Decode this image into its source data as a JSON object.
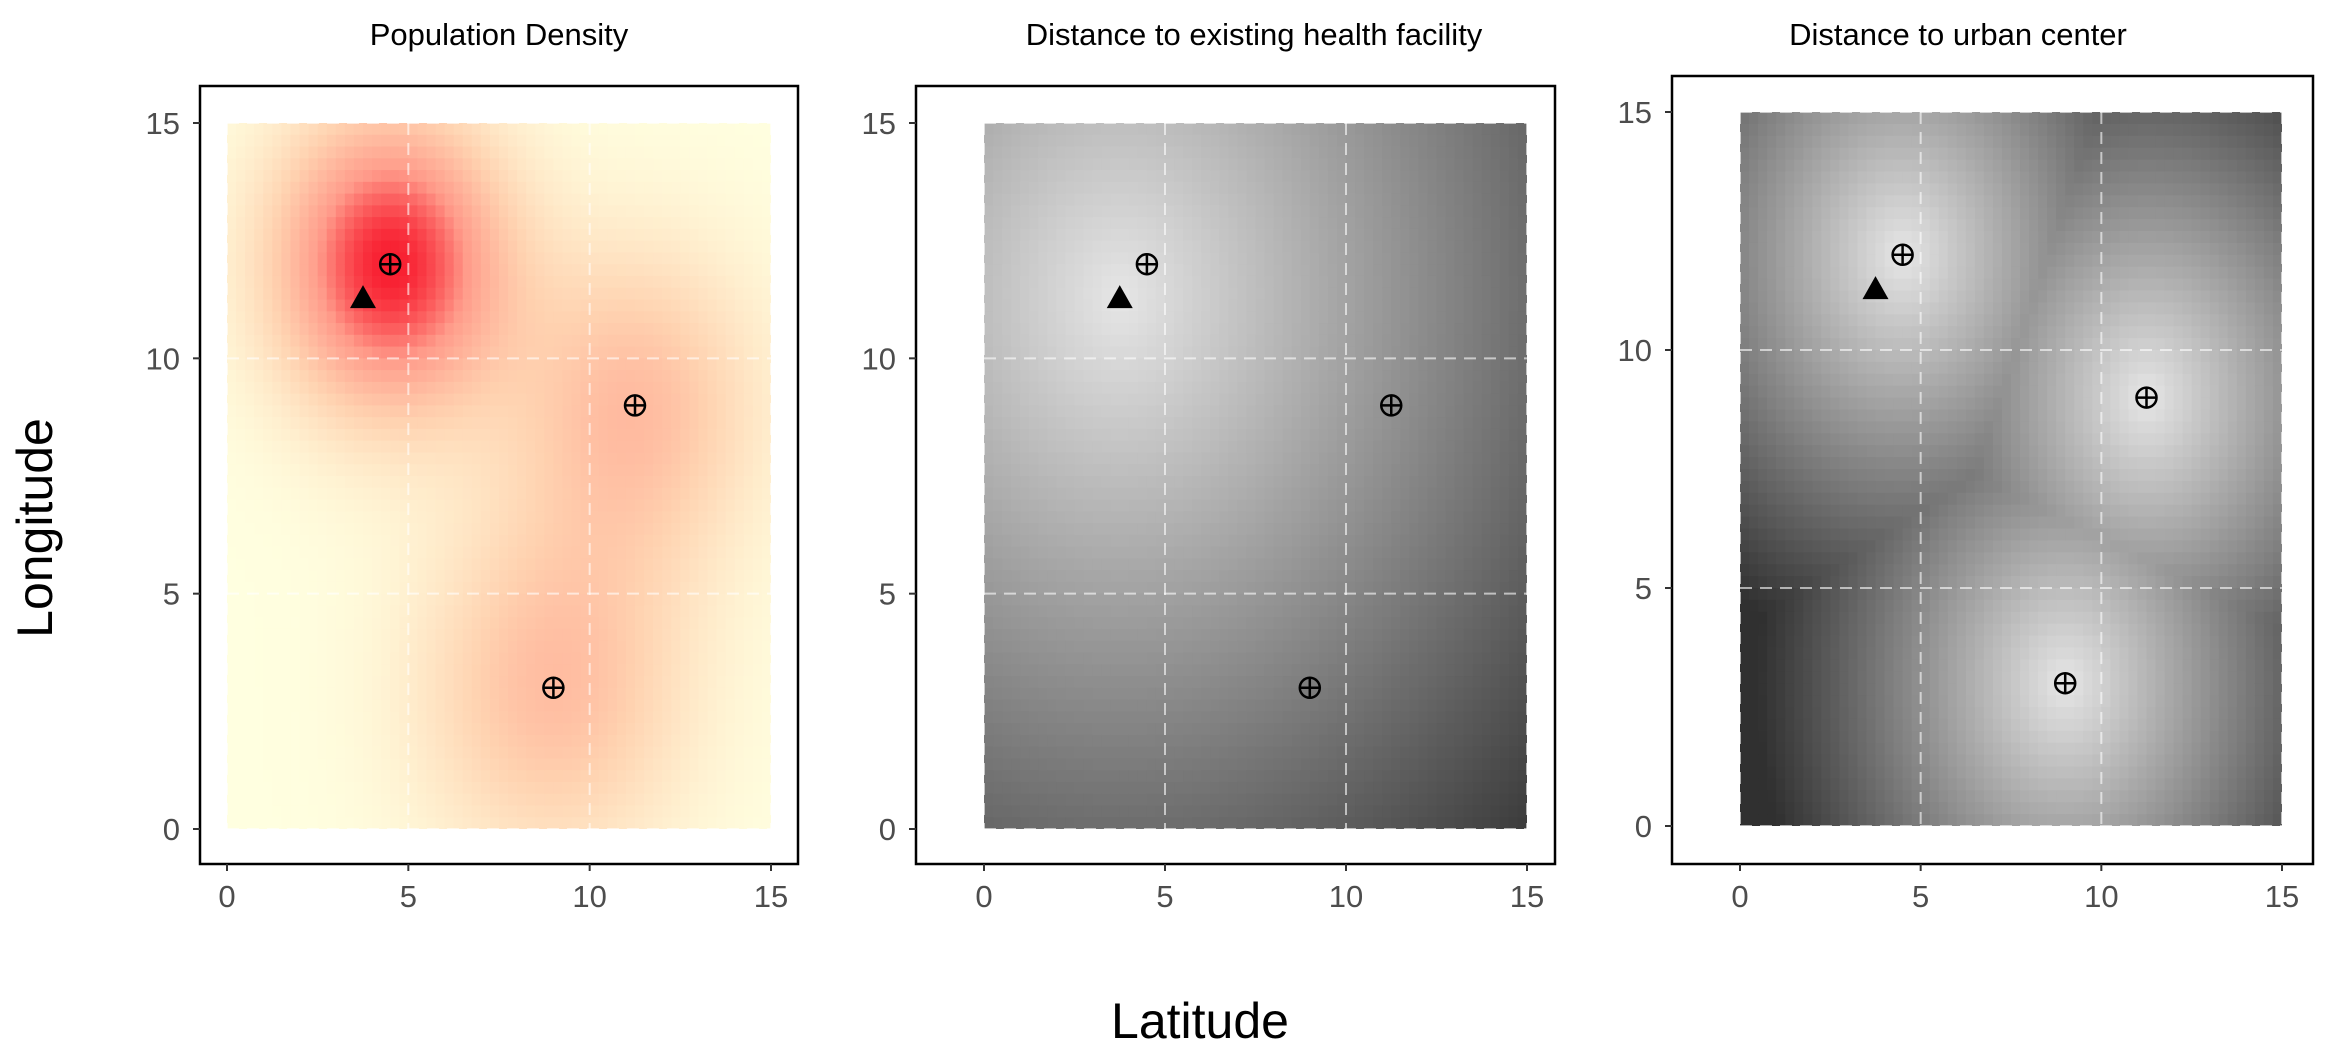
{
  "chart_data": [
    {
      "type": "heatmap",
      "title": "Population Density",
      "palette": [
        "#ffffe0",
        "#ffd2b0",
        "#ff9b8a",
        "#f81e30"
      ],
      "xlim": [
        0,
        15
      ],
      "ylim": [
        0,
        15
      ],
      "xticks": [
        "0",
        "5",
        "10",
        "15"
      ],
      "yticks": [
        "0",
        "5",
        "10",
        "15"
      ],
      "grid": true
    },
    {
      "type": "heatmap",
      "title": "Distance to existing health facility",
      "palette": [
        "#e6e6e6",
        "#303030"
      ],
      "xlim": [
        0,
        15
      ],
      "ylim": [
        0,
        15
      ],
      "xticks": [
        "0",
        "5",
        "10",
        "15"
      ],
      "yticks": [
        "0",
        "5",
        "10",
        "15"
      ],
      "grid": true
    },
    {
      "type": "heatmap",
      "title": "Distance to urban center",
      "palette": [
        "#e6e6e6",
        "#303030"
      ],
      "xlim": [
        0,
        15
      ],
      "ylim": [
        0,
        15
      ],
      "xticks": [
        "0",
        "5",
        "10",
        "15"
      ],
      "yticks": [
        "0",
        "5",
        "10",
        "15"
      ],
      "grid": true
    }
  ],
  "urban_centers": [
    {
      "x": 4.5,
      "y": 12
    },
    {
      "x": 11.25,
      "y": 9
    },
    {
      "x": 9,
      "y": 3
    }
  ],
  "existing_facility": {
    "x": 3.75,
    "y": 11.3
  },
  "marker_icons": {
    "urban_center": "circle-plus-icon",
    "existing_facility": "filled-triangle-icon"
  },
  "xlabel": "Latitude",
  "ylabel": "Longitude"
}
